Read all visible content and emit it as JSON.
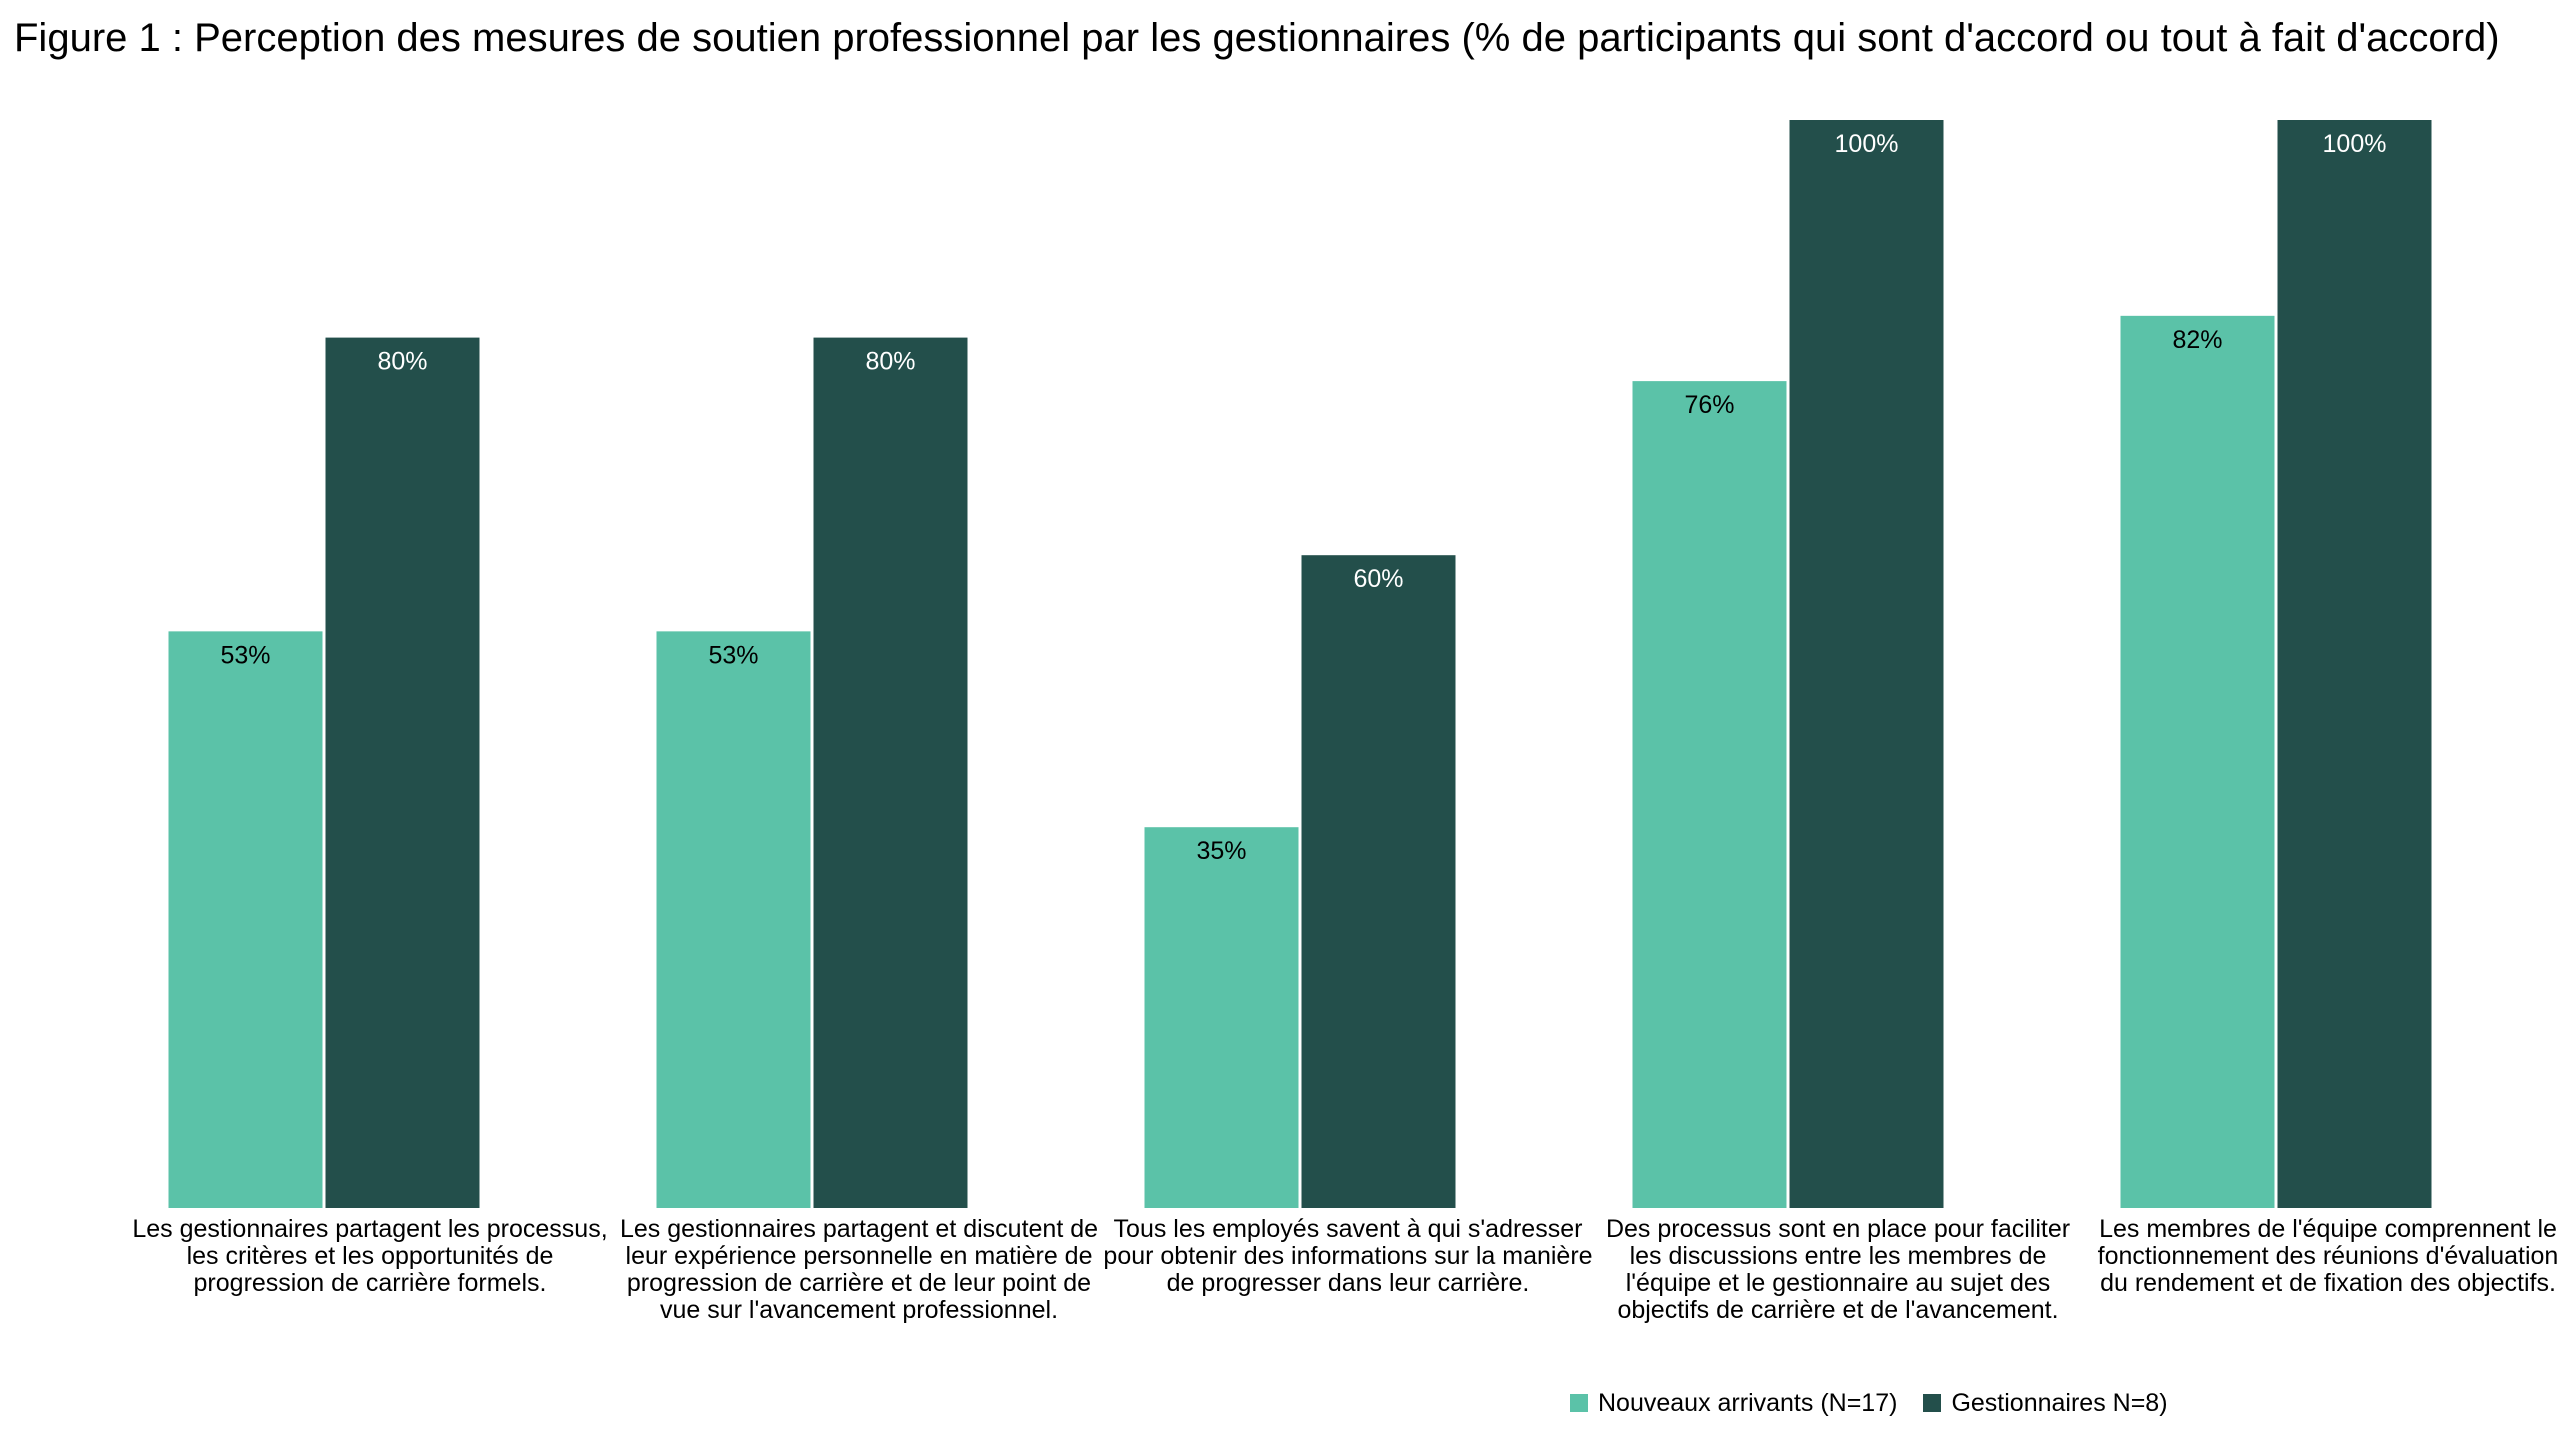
{
  "chart_data": {
    "type": "bar",
    "title": "Figure 1 : Perception des mesures de soutien professionnel par les gestionnaires (% de participants qui sont d'accord ou tout à fait d'accord)",
    "categories": [
      "Les gestionnaires partagent les processus, les critères et les opportunités de progression de carrière formels.",
      "Les gestionnaires partagent et discutent de leur expérience personnelle en matière de progression de carrière et de leur point de vue sur l'avancement professionnel.",
      "Tous les employés savent à qui s'adresser pour obtenir des informations sur la manière de progresser dans leur carrière.",
      "Des processus sont en place pour faciliter les discussions entre les membres de l'équipe et le gestionnaire au sujet des objectifs de carrière et de l'avancement.",
      "Les membres de l'équipe comprennent le fonctionnement des réunions d'évaluation du rendement et de fixation des objectifs."
    ],
    "series": [
      {
        "name": "Nouveaux arrivants (N=17)",
        "color": "#5bc2a8",
        "label_color": "#000000",
        "values": [
          53,
          53,
          35,
          76,
          82
        ],
        "value_labels": [
          "53%",
          "53%",
          "35%",
          "76%",
          "82%"
        ]
      },
      {
        "name": "Gestionnaires N=8)",
        "color": "#234f4b",
        "label_color": "#ffffff",
        "values": [
          80,
          80,
          60,
          100,
          100
        ],
        "value_labels": [
          "80%",
          "80%",
          "60%",
          "100%",
          "100%"
        ]
      }
    ],
    "ylim": [
      0,
      100
    ],
    "xlabel": "",
    "ylabel": "",
    "grid": false,
    "legend_position": "bottom-right"
  }
}
